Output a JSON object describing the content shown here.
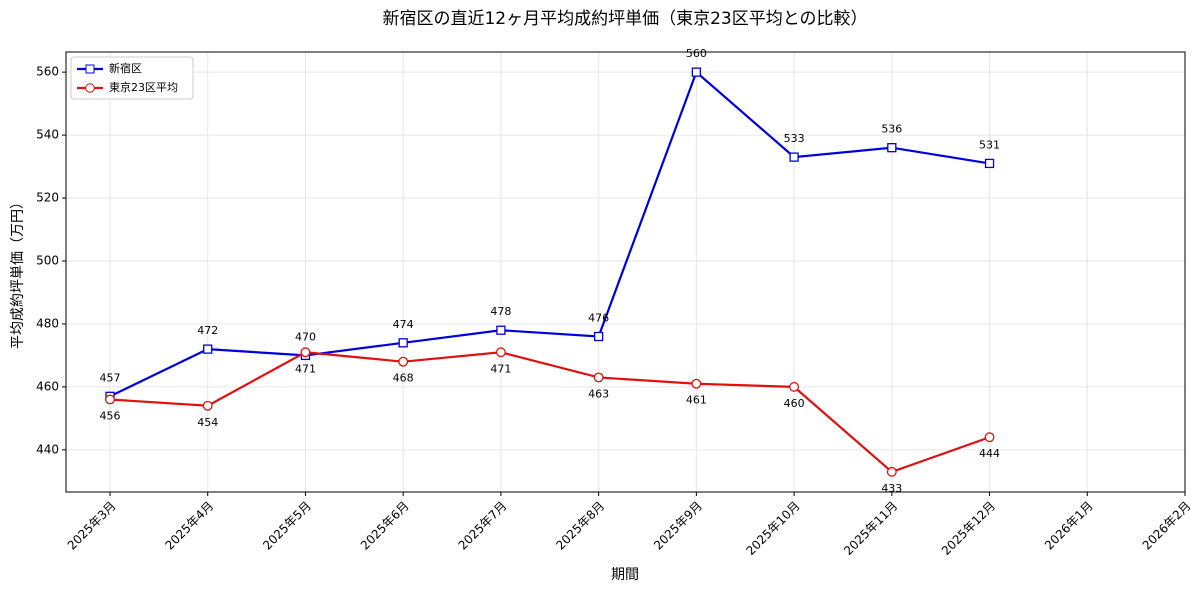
{
  "chart_data": {
    "type": "line",
    "title": "新宿区の直近12ヶ月平均成約坪単価（東京23区平均との比較）",
    "xlabel": "期間",
    "ylabel": "平均成約坪単価（万円）",
    "categories": [
      "2025年3月",
      "2025年4月",
      "2025年5月",
      "2025年6月",
      "2025年7月",
      "2025年8月",
      "2025年9月",
      "2025年10月",
      "2025年11月",
      "2025年12月",
      "2026年1月",
      "2026年2月"
    ],
    "series": [
      {
        "name": "新宿区",
        "color": "#0000dd",
        "marker": "square",
        "label_side": "above",
        "values": [
          457,
          472,
          470,
          474,
          478,
          476,
          560,
          533,
          536,
          531,
          null,
          null
        ]
      },
      {
        "name": "東京23区平均",
        "color": "#e01010",
        "marker": "circle",
        "label_side": "below",
        "values": [
          456,
          454,
          471,
          468,
          471,
          463,
          461,
          460,
          433,
          444,
          null,
          null
        ]
      }
    ],
    "ylim": [
      426.6,
      566.4
    ],
    "yticks": [
      440,
      460,
      480,
      500,
      520,
      540,
      560
    ],
    "grid": true,
    "legend": "upper left"
  }
}
